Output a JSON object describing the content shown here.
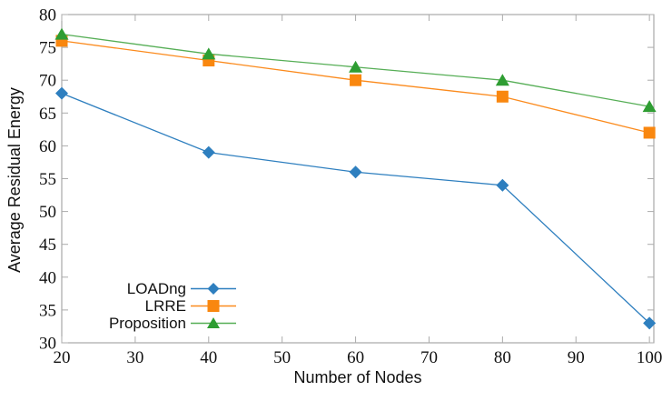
{
  "figure": {
    "title": "",
    "background": "#ffffff"
  },
  "chart_data": {
    "type": "line",
    "title": "",
    "xlabel": "Number of Nodes",
    "ylabel": "Average Residual Energy",
    "x": [
      20,
      40,
      60,
      80,
      100
    ],
    "series": [
      {
        "name": "LOADng",
        "marker": "diamond",
        "color": "#2E7FBF",
        "marker_color": "#2E7FBF",
        "values": [
          68,
          59,
          56,
          54,
          33
        ]
      },
      {
        "name": "LRRE",
        "marker": "square",
        "color": "#FB8A1C",
        "marker_color": "#F9870F",
        "values": [
          76,
          73,
          70,
          67.5,
          62
        ]
      },
      {
        "name": "Proposition",
        "marker": "triangle",
        "color": "#56AE56",
        "marker_color": "#2E9D32",
        "values": [
          77,
          74,
          72,
          70,
          66
        ]
      }
    ],
    "xticks": [
      20,
      30,
      40,
      50,
      60,
      70,
      80,
      90,
      100
    ],
    "yticks": [
      30,
      35,
      40,
      45,
      50,
      55,
      60,
      65,
      70,
      75,
      80
    ],
    "xlim": [
      20,
      100.6
    ],
    "ylim": [
      30,
      80
    ],
    "grid": false,
    "legend_position": "lower-left",
    "legend_entries": [
      "LOADng",
      "LRRE",
      "Proposition"
    ],
    "axis_color": "#979797",
    "tick_color": "#ababab",
    "text_color": "#111111"
  }
}
